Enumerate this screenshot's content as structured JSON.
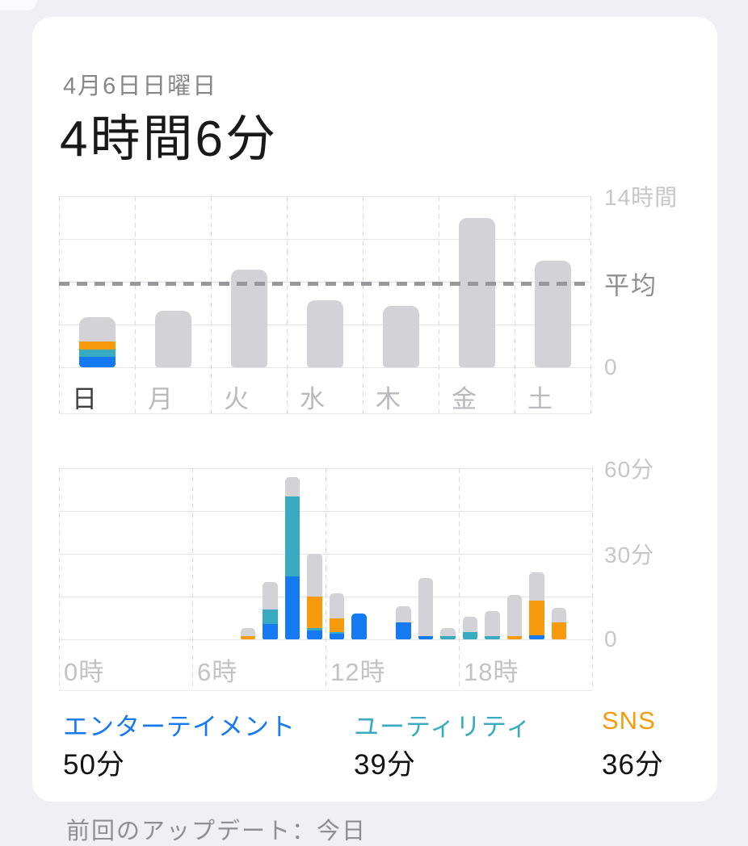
{
  "header": {
    "date": "4月6日日曜日",
    "total": "4時間6分"
  },
  "colors": {
    "entertainment": "#1579F2",
    "utility": "#38ABC2",
    "sns": "#F69B0D",
    "other": "#D2D2D7",
    "grid": "#E4E4E9",
    "average_line": "#97979C",
    "card_bg": "#FFFFFF",
    "page_bg": "#EFEFF4"
  },
  "legend": [
    {
      "id": "entertainment",
      "label": "エンターテイメント",
      "value": "50分",
      "color": "#1579F2"
    },
    {
      "id": "utility",
      "label": "ユーティリティ",
      "value": "39分",
      "color": "#38ABC2"
    },
    {
      "id": "sns",
      "label": "SNS",
      "value": "36分",
      "color": "#F69B0D"
    }
  ],
  "footer": {
    "cut_text": "前回のアップデート：今日"
  },
  "chart_data": [
    {
      "type": "bar",
      "name": "weekly-screen-time",
      "categories": [
        "日",
        "月",
        "火",
        "水",
        "木",
        "金",
        "土"
      ],
      "selected_category": "日",
      "ylim": [
        0,
        14
      ],
      "ylabel_unit": "時間",
      "y_axis_labels": [
        {
          "text": "14時間",
          "value": 14
        },
        {
          "text": "0",
          "value": 0
        }
      ],
      "average": {
        "label": "平均",
        "value_hours": 6.9
      },
      "stack_order_bottom_to_top": [
        "entertainment",
        "utility",
        "sns",
        "other"
      ],
      "values": [
        {
          "day": "日",
          "total_hours": 4.1,
          "stack_minutes": {
            "entertainment": 50,
            "utility": 39,
            "sns": 36,
            "other": 121
          }
        },
        {
          "day": "月",
          "total_hours": 4.6
        },
        {
          "day": "火",
          "total_hours": 8.0
        },
        {
          "day": "水",
          "total_hours": 5.5
        },
        {
          "day": "木",
          "total_hours": 5.0
        },
        {
          "day": "金",
          "total_hours": 12.2
        },
        {
          "day": "土",
          "total_hours": 8.7
        }
      ]
    },
    {
      "type": "stacked-bar",
      "name": "hourly-usage",
      "x_axis_labels": [
        {
          "text": "0時",
          "hour": 0
        },
        {
          "text": "6時",
          "hour": 6
        },
        {
          "text": "12時",
          "hour": 12
        },
        {
          "text": "18時",
          "hour": 18
        }
      ],
      "ylim": [
        0,
        60
      ],
      "y_axis_labels": [
        {
          "text": "60分",
          "value": 60
        },
        {
          "text": "30分",
          "value": 30
        },
        {
          "text": "0",
          "value": 0
        }
      ],
      "stack_order_bottom_to_top": [
        "entertainment",
        "utility",
        "sns",
        "other"
      ],
      "bars_minutes": [
        {
          "hour": 8,
          "sns": 1,
          "other": 3
        },
        {
          "hour": 9,
          "entertainment": 5.5,
          "utility": 5,
          "other": 9.5
        },
        {
          "hour": 10,
          "entertainment": 22,
          "utility": 28,
          "other": 7
        },
        {
          "hour": 11,
          "entertainment": 3,
          "utility": 1,
          "sns": 11,
          "other": 15
        },
        {
          "hour": 12,
          "entertainment": 2,
          "utility": 0.5,
          "sns": 5,
          "other": 8.5
        },
        {
          "hour": 13,
          "entertainment": 9
        },
        {
          "hour": 15,
          "entertainment": 6,
          "other": 5.5
        },
        {
          "hour": 16,
          "entertainment": 1,
          "other": 20.5
        },
        {
          "hour": 17,
          "utility": 1,
          "other": 3
        },
        {
          "hour": 18,
          "utility": 2.5,
          "other": 5.5
        },
        {
          "hour": 19,
          "utility": 1,
          "other": 9
        },
        {
          "hour": 20,
          "sns": 1,
          "other": 14.5
        },
        {
          "hour": 21,
          "entertainment": 1.5,
          "sns": 12,
          "other": 10
        },
        {
          "hour": 22,
          "sns": 6,
          "other": 5
        }
      ]
    }
  ]
}
